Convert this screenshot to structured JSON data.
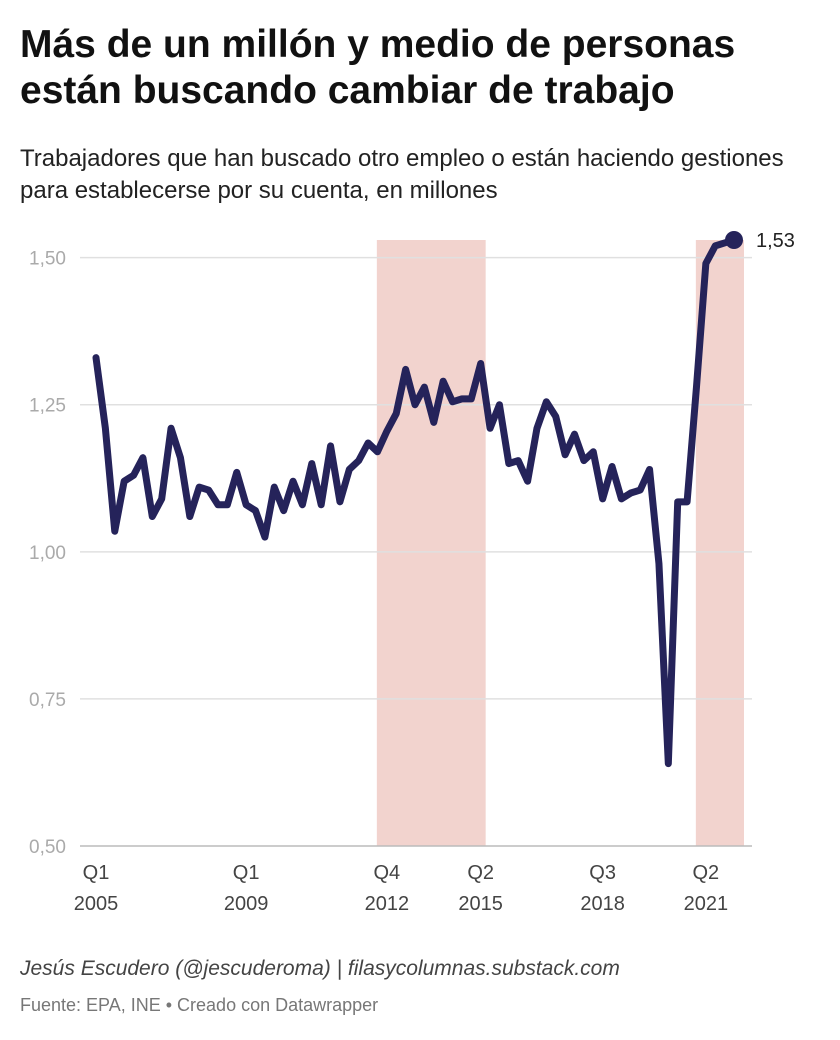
{
  "header": {
    "title": "Más de un millón y medio de personas están buscando cambiar de trabajo",
    "subtitle": "Trabajadores que han buscado otro empleo o están haciendo gestiones para establecerse por su cuenta, en millones"
  },
  "footer": {
    "byline": "Jesús Escudero (@jescuderoma) | filasycolumnas.substack.com",
    "source": "Fuente: EPA, INE",
    "separator": "•",
    "credit": "Creado con Datawrapper"
  },
  "colors": {
    "line": "#25235a",
    "highlight_band": "#f2d3ce",
    "grid": "#e0e0e0"
  },
  "chart_data": {
    "type": "line",
    "title": "Más de un millón y medio de personas están buscando cambiar de trabajo",
    "subtitle": "Trabajadores que han buscado otro empleo o están haciendo gestiones para establecerse por su cuenta, en millones",
    "xlabel": "",
    "ylabel": "",
    "ylim": [
      0.5,
      1.53
    ],
    "y_ticks": [
      {
        "value": 0.5,
        "label": "0,50"
      },
      {
        "value": 0.75,
        "label": "0,75"
      },
      {
        "value": 1.0,
        "label": "1,00"
      },
      {
        "value": 1.25,
        "label": "1,25"
      },
      {
        "value": 1.5,
        "label": "1,50"
      }
    ],
    "x_ticks": [
      {
        "quarter": "Q1",
        "year": "2005"
      },
      {
        "quarter": "Q1",
        "year": "2009"
      },
      {
        "quarter": "Q4",
        "year": "2012"
      },
      {
        "quarter": "Q2",
        "year": "2015"
      },
      {
        "quarter": "Q3",
        "year": "2018"
      },
      {
        "quarter": "Q2",
        "year": "2021"
      }
    ],
    "highlight_ranges": [
      {
        "from": "Q4 2012",
        "to": "Q2 2015"
      },
      {
        "from": "Q2 2021",
        "to": "Q2 2022"
      }
    ],
    "grid": true,
    "legend": "none",
    "end_label": "1,53",
    "x": [
      "Q1 2005",
      "Q2 2005",
      "Q3 2005",
      "Q4 2005",
      "Q1 2006",
      "Q2 2006",
      "Q3 2006",
      "Q4 2006",
      "Q1 2007",
      "Q2 2007",
      "Q3 2007",
      "Q4 2007",
      "Q1 2008",
      "Q2 2008",
      "Q3 2008",
      "Q4 2008",
      "Q1 2009",
      "Q2 2009",
      "Q3 2009",
      "Q4 2009",
      "Q1 2010",
      "Q2 2010",
      "Q3 2010",
      "Q4 2010",
      "Q1 2011",
      "Q2 2011",
      "Q3 2011",
      "Q4 2011",
      "Q1 2012",
      "Q2 2012",
      "Q3 2012",
      "Q4 2012",
      "Q1 2013",
      "Q2 2013",
      "Q3 2013",
      "Q4 2013",
      "Q1 2014",
      "Q2 2014",
      "Q3 2014",
      "Q4 2014",
      "Q1 2015",
      "Q2 2015",
      "Q3 2015",
      "Q4 2015",
      "Q1 2016",
      "Q2 2016",
      "Q3 2016",
      "Q4 2016",
      "Q1 2017",
      "Q2 2017",
      "Q3 2017",
      "Q4 2017",
      "Q1 2018",
      "Q2 2018",
      "Q3 2018",
      "Q4 2018",
      "Q1 2019",
      "Q2 2019",
      "Q3 2019",
      "Q4 2019",
      "Q1 2020",
      "Q2 2020",
      "Q3 2020",
      "Q4 2020",
      "Q1 2021",
      "Q2 2021",
      "Q3 2021",
      "Q4 2021",
      "Q1 2022"
    ],
    "values": [
      1.33,
      1.21,
      1.035,
      1.12,
      1.13,
      1.16,
      1.06,
      1.09,
      1.21,
      1.16,
      1.06,
      1.11,
      1.105,
      1.08,
      1.08,
      1.135,
      1.08,
      1.07,
      1.025,
      1.11,
      1.07,
      1.12,
      1.08,
      1.15,
      1.08,
      1.18,
      1.085,
      1.14,
      1.155,
      1.185,
      1.17,
      1.205,
      1.235,
      1.31,
      1.25,
      1.28,
      1.22,
      1.29,
      1.255,
      1.26,
      1.26,
      1.32,
      1.21,
      1.25,
      1.15,
      1.155,
      1.12,
      1.21,
      1.255,
      1.23,
      1.165,
      1.2,
      1.155,
      1.17,
      1.09,
      1.145,
      1.09,
      1.1,
      1.105,
      1.14,
      0.98,
      0.64,
      1.085,
      1.085,
      1.28,
      1.49,
      1.52,
      1.525,
      1.53
    ]
  }
}
